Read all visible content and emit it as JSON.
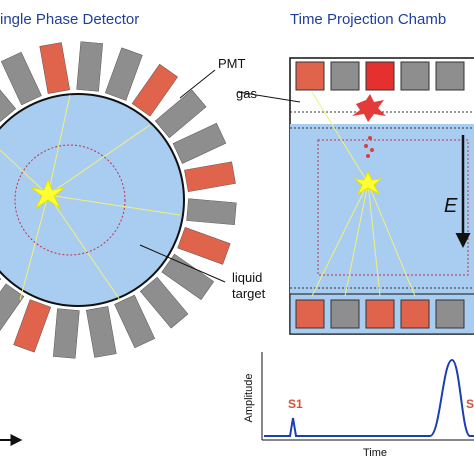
{
  "left": {
    "title": "ingle Phase Detector",
    "pmt_label": "PMT",
    "liquid_label": "liquid",
    "target_label": "target"
  },
  "right": {
    "title": "Time Projection Chamb",
    "gas_label": "gas",
    "field_label": "E"
  },
  "waveform": {
    "y_label": "Amplitude",
    "x_label": "Time",
    "s1_label": "S1",
    "s2_label": "S"
  }
}
